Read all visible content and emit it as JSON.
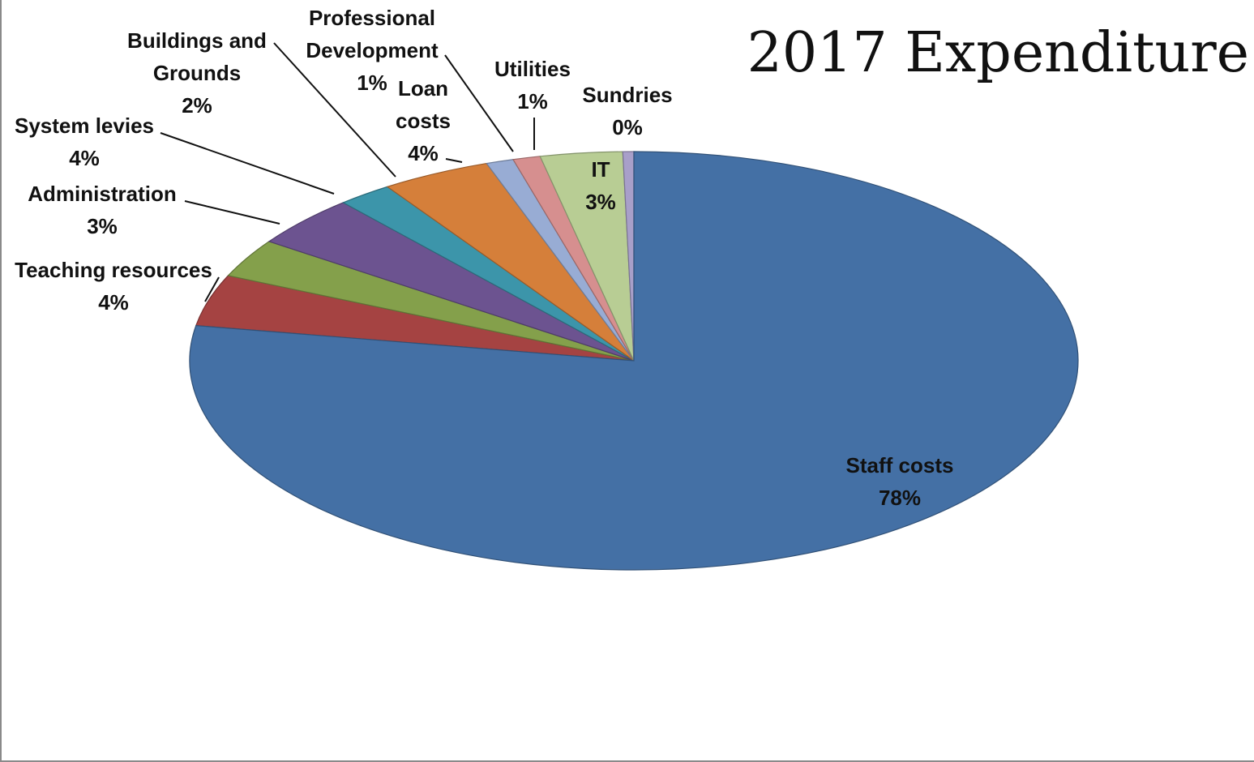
{
  "chart_data": {
    "type": "pie",
    "title": "2017 Expenditure",
    "start_category": "Teaching resources",
    "clockwise": true,
    "slices": [
      {
        "label": "Teaching resources",
        "label_lines": [
          "Teaching resources"
        ],
        "value_text": "4%",
        "value": 4,
        "color": "#a54342"
      },
      {
        "label": "Administration",
        "label_lines": [
          "Administration"
        ],
        "value_text": "3%",
        "value": 3,
        "color": "#84a04b"
      },
      {
        "label": "System levies",
        "label_lines": [
          "System levies"
        ],
        "value_text": "4%",
        "value": 4,
        "color": "#6c5390"
      },
      {
        "label": "Buildings and Grounds",
        "label_lines": [
          "Buildings and",
          "Grounds"
        ],
        "value_text": "2%",
        "value": 2,
        "color": "#3c95aa"
      },
      {
        "label": "Loan costs",
        "label_lines": [
          "Loan",
          "costs"
        ],
        "value_text": "4%",
        "value": 4,
        "color": "#d57f3a"
      },
      {
        "label": "Professional Development",
        "label_lines": [
          "Professional",
          "Development"
        ],
        "value_text": "1%",
        "value": 1,
        "color": "#98acd4"
      },
      {
        "label": "Utilities",
        "label_lines": [
          "Utilities"
        ],
        "value_text": "1%",
        "value": 1,
        "color": "#d68f8f"
      },
      {
        "label": "IT",
        "label_lines": [
          "IT"
        ],
        "value_text": "3%",
        "value": 3,
        "color": "#b8cd94"
      },
      {
        "label": "Sundries",
        "label_lines": [
          "Sundries"
        ],
        "value_text": "0%",
        "value": 0.4,
        "color": "#a89fc9"
      },
      {
        "label": "Staff costs",
        "label_lines": [
          "Staff costs"
        ],
        "value_text": "78%",
        "value": 78,
        "color": "#4470a5"
      }
    ]
  }
}
